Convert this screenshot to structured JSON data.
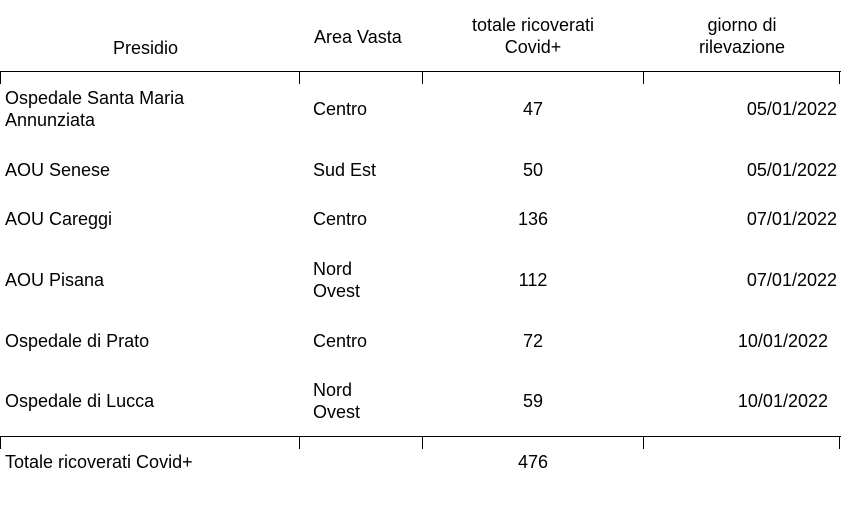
{
  "table": {
    "headers": {
      "presidio": "Presidio",
      "area_vasta": "Area Vasta",
      "ricoverati_line1": "totale ricoverati",
      "ricoverati_line2": "Covid+",
      "giorno_line1": "giorno di",
      "giorno_line2": "rilevazione"
    },
    "rows": [
      {
        "presidio": [
          "Ospedale Santa Maria",
          "Annunziata"
        ],
        "area": [
          "Centro"
        ],
        "value": "47",
        "date": "05/01/2022"
      },
      {
        "presidio": [
          "AOU Senese"
        ],
        "area": [
          "Sud Est"
        ],
        "value": "50",
        "date": "05/01/2022"
      },
      {
        "presidio": [
          "AOU Careggi"
        ],
        "area": [
          "Centro"
        ],
        "value": "136",
        "date": "07/01/2022"
      },
      {
        "presidio": [
          "AOU Pisana"
        ],
        "area": [
          "Nord",
          "Ovest"
        ],
        "value": "112",
        "date": "07/01/2022"
      },
      {
        "presidio": [
          "Ospedale di Prato"
        ],
        "area": [
          "Centro"
        ],
        "value": "72",
        "date": "10/01/2022"
      },
      {
        "presidio": [
          "Ospedale di Lucca"
        ],
        "area": [
          "Nord",
          "Ovest"
        ],
        "value": "59",
        "date": "10/01/2022"
      }
    ],
    "total": {
      "label": "Totale ricoverati Covid+",
      "value": "476"
    }
  }
}
